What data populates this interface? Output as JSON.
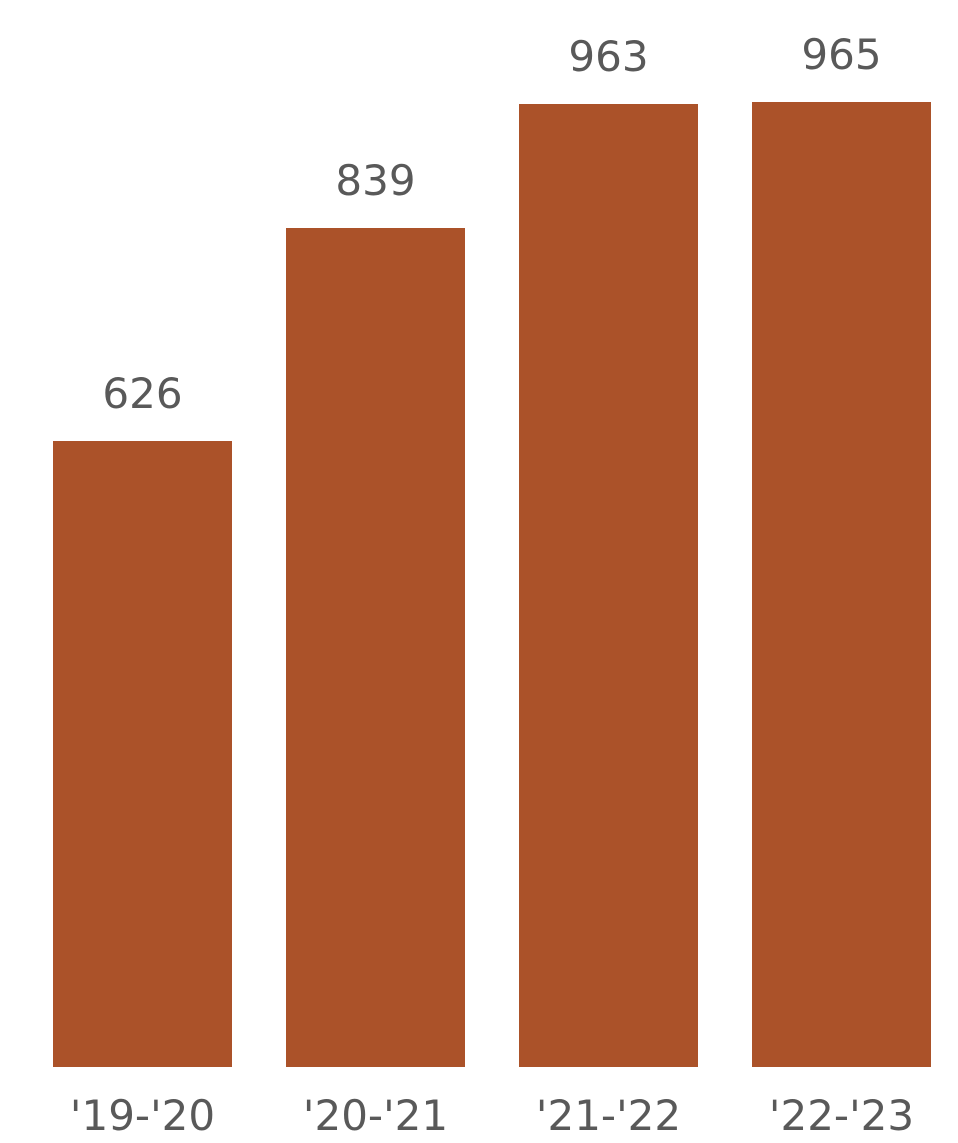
{
  "colors": {
    "bar": "#AB5229",
    "label": "#595959",
    "background": "#FFFFFF"
  },
  "chart_data": {
    "type": "bar",
    "title": "",
    "xlabel": "",
    "ylabel": "",
    "categories": [
      "'19-'20",
      "'20-'21",
      "'21-'22",
      "'22-'23"
    ],
    "values": [
      626,
      839,
      963,
      965
    ],
    "ylim": [
      0,
      965
    ],
    "grid": false,
    "legend": "none",
    "data_labels": true
  }
}
